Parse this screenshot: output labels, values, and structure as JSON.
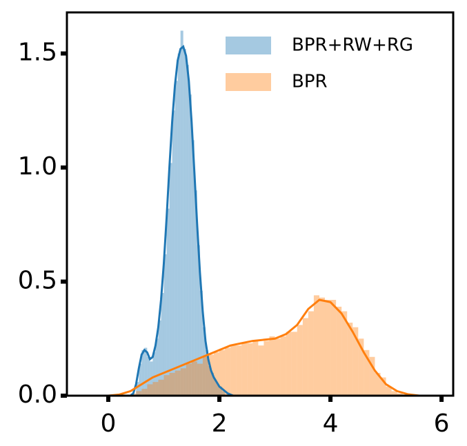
{
  "chart_data": {
    "type": "histogram",
    "legend": "upper right",
    "xlim": [
      -0.745,
      6.21
    ],
    "ylim": [
      0,
      1.68
    ],
    "xticks": [
      0,
      2,
      4,
      6
    ],
    "yticks": [
      {
        "value": 0,
        "label": "0.0"
      },
      0.5,
      {
        "value": 1,
        "label": "1.0"
      },
      1.5
    ],
    "series": [
      {
        "name": "BPR+RW+RG",
        "color": "#1f77b4",
        "bins": [
          0.5,
          0.55,
          0.6,
          0.65,
          0.7,
          0.75,
          0.8,
          0.85,
          0.9,
          0.95,
          1.0,
          1.05,
          1.1,
          1.15,
          1.2,
          1.25,
          1.3,
          1.35,
          1.4,
          1.45,
          1.5,
          1.55,
          1.6,
          1.65,
          1.7,
          1.75,
          1.8,
          1.85,
          1.9,
          1.95,
          2.0,
          2.05,
          2.1
        ],
        "values": [
          0.06,
          0.14,
          0.2,
          0.21,
          0.17,
          0.15,
          0.19,
          0.25,
          0.33,
          0.45,
          0.62,
          0.82,
          1.02,
          1.25,
          1.38,
          1.5,
          1.6,
          1.52,
          1.45,
          1.32,
          1.12,
          0.9,
          0.66,
          0.46,
          0.3,
          0.2,
          0.13,
          0.1,
          0.07,
          0.05,
          0.04,
          0.02
        ],
        "kde": {
          "x": [
            0.4,
            0.45,
            0.5,
            0.55,
            0.6,
            0.65,
            0.7,
            0.75,
            0.8,
            0.85,
            0.9,
            0.95,
            1.0,
            1.05,
            1.1,
            1.15,
            1.2,
            1.25,
            1.3,
            1.35,
            1.4,
            1.45,
            1.5,
            1.55,
            1.6,
            1.65,
            1.7,
            1.75,
            1.8,
            1.85,
            1.9,
            1.95,
            2.0,
            2.05,
            2.1,
            2.15,
            2.2,
            2.25
          ],
          "values": [
            0,
            0.01,
            0.05,
            0.12,
            0.18,
            0.2,
            0.19,
            0.16,
            0.17,
            0.22,
            0.3,
            0.42,
            0.58,
            0.78,
            1.0,
            1.2,
            1.36,
            1.47,
            1.52,
            1.53,
            1.49,
            1.38,
            1.2,
            0.98,
            0.75,
            0.54,
            0.37,
            0.24,
            0.16,
            0.11,
            0.08,
            0.06,
            0.04,
            0.03,
            0.02,
            0.01,
            0.005,
            0
          ]
        }
      },
      {
        "name": "BPR",
        "color": "#ff7f0e",
        "bins": [
          0.4,
          0.5,
          0.6,
          0.7,
          0.8,
          0.9,
          1.0,
          1.1,
          1.2,
          1.3,
          1.4,
          1.5,
          1.6,
          1.7,
          1.8,
          1.9,
          2.0,
          2.1,
          2.2,
          2.3,
          2.4,
          2.5,
          2.6,
          2.7,
          2.8,
          2.9,
          3.0,
          3.1,
          3.2,
          3.3,
          3.4,
          3.5,
          3.6,
          3.7,
          3.8,
          3.9,
          4.0,
          4.1,
          4.2,
          4.3,
          4.4,
          4.5,
          4.6,
          4.7,
          4.8,
          4.9,
          5.0,
          5.1,
          5.2,
          5.3,
          5.4
        ],
        "values": [
          0.01,
          0.02,
          0.03,
          0.05,
          0.06,
          0.07,
          0.09,
          0.1,
          0.11,
          0.12,
          0.14,
          0.15,
          0.14,
          0.17,
          0.18,
          0.19,
          0.2,
          0.21,
          0.22,
          0.22,
          0.23,
          0.23,
          0.24,
          0.22,
          0.24,
          0.26,
          0.25,
          0.26,
          0.28,
          0.28,
          0.31,
          0.34,
          0.37,
          0.44,
          0.43,
          0.42,
          0.42,
          0.39,
          0.37,
          0.32,
          0.3,
          0.25,
          0.2,
          0.17,
          0.1,
          0.08,
          0.04,
          0.02,
          0.01,
          0.005
        ],
        "kde": {
          "x": [
            0,
            0.2,
            0.4,
            0.6,
            0.8,
            1.0,
            1.2,
            1.4,
            1.6,
            1.8,
            2.0,
            2.2,
            2.4,
            2.6,
            2.8,
            3.0,
            3.2,
            3.4,
            3.6,
            3.8,
            4.0,
            4.2,
            4.4,
            4.6,
            4.8,
            5.0,
            5.2,
            5.4,
            5.6
          ],
          "values": [
            0,
            0.005,
            0.02,
            0.05,
            0.08,
            0.1,
            0.12,
            0.14,
            0.16,
            0.18,
            0.2,
            0.22,
            0.23,
            0.24,
            0.245,
            0.25,
            0.27,
            0.31,
            0.38,
            0.42,
            0.41,
            0.36,
            0.28,
            0.19,
            0.11,
            0.05,
            0.02,
            0.006,
            0
          ]
        }
      }
    ]
  }
}
